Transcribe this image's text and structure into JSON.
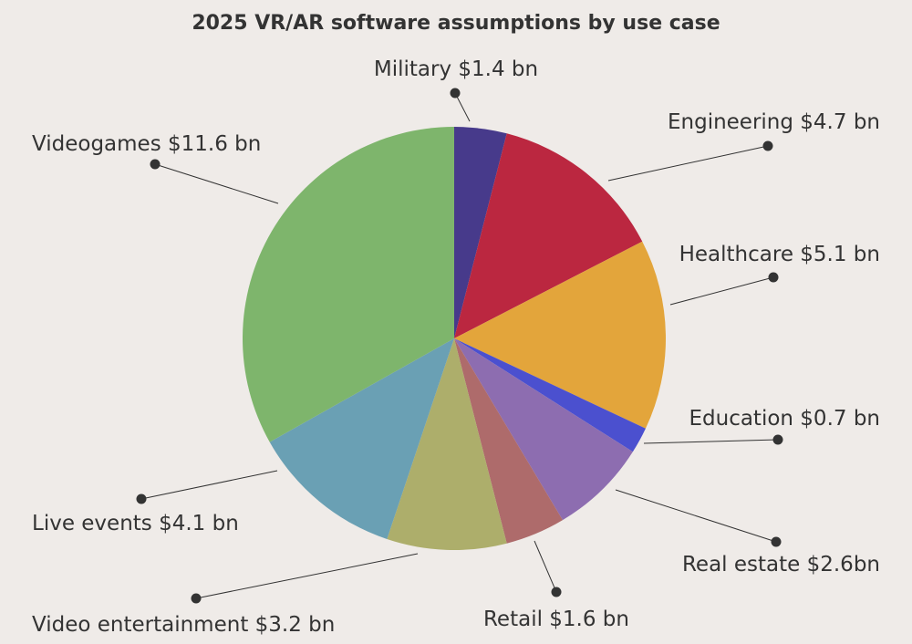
{
  "chart_data": {
    "type": "pie",
    "title": "2025 VR/AR software assumptions by use case",
    "unit": "bn",
    "slices": [
      {
        "name": "Military",
        "value": 1.4,
        "label": "Military $1.4 bn",
        "color": "#473a8b"
      },
      {
        "name": "Engineering",
        "value": 4.7,
        "label": "Engineering $4.7 bn",
        "color": "#bb2740"
      },
      {
        "name": "Healthcare",
        "value": 5.1,
        "label": "Healthcare $5.1 bn",
        "color": "#e3a53b"
      },
      {
        "name": "Education",
        "value": 0.7,
        "label": "Education $0.7 bn",
        "color": "#4b50cf"
      },
      {
        "name": "Real estate",
        "value": 2.6,
        "label": "Real estate $2.6bn",
        "color": "#8d6db0"
      },
      {
        "name": "Retail",
        "value": 1.6,
        "label": "Retail $1.6 bn",
        "color": "#ae6b6b"
      },
      {
        "name": "Video entertainment",
        "value": 3.2,
        "label": "Video entertainment $3.2 bn",
        "color": "#adae6b"
      },
      {
        "name": "Live events",
        "value": 4.1,
        "label": "Live events $4.1 bn",
        "color": "#6aa0b4"
      },
      {
        "name": "Videogames",
        "value": 11.6,
        "label": "Videogames $11.6 bn",
        "color": "#7eb56c"
      }
    ],
    "start_angle": "12 o'clock",
    "direction": "clockwise",
    "legend": "none (callout labels)"
  }
}
